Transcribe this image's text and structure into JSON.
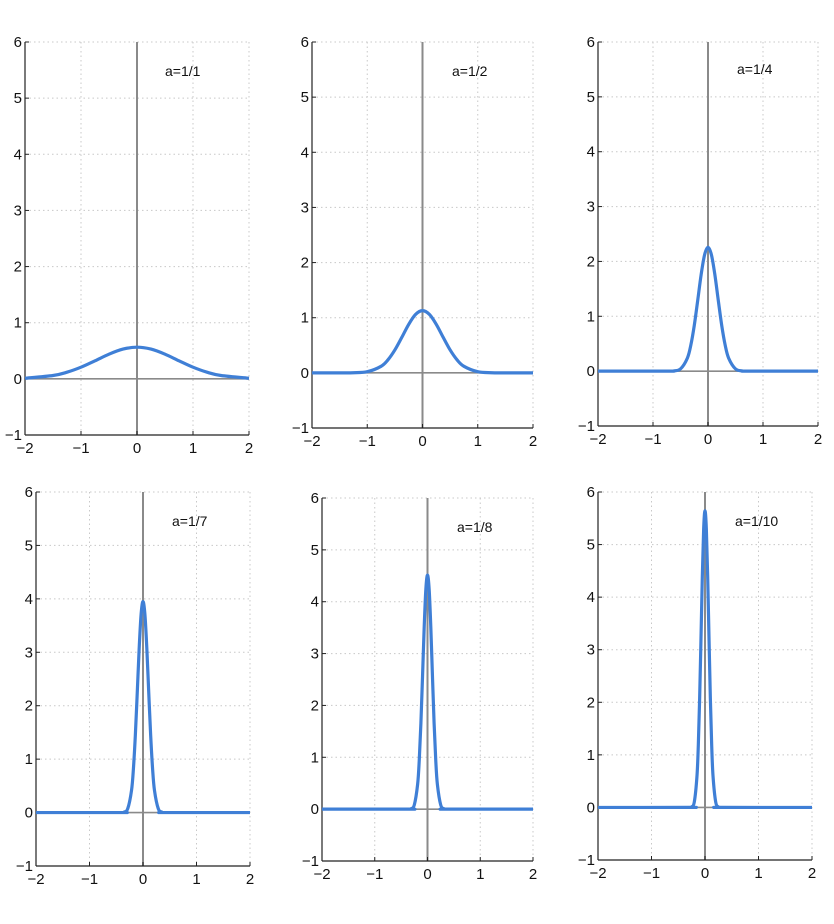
{
  "colors": {
    "curve": "#3f7fd6",
    "zero_lines": "#8a8a8a",
    "grid": "#c8c8c8",
    "axes": "#222222"
  },
  "chart_data": [
    {
      "type": "line",
      "annotation": "a=1/1",
      "xlim": [
        -2,
        2
      ],
      "ylim": [
        -1,
        6
      ],
      "grid": true,
      "xticks": [
        "−2",
        "−1",
        "0",
        "1",
        "2"
      ],
      "yticks": [
        "−1",
        "0",
        "1",
        "2",
        "3",
        "4",
        "5",
        "6"
      ],
      "x": [
        -2,
        -1.5,
        -1.25,
        -1,
        -0.75,
        -0.5,
        -0.25,
        0,
        0.25,
        0.5,
        0.75,
        1,
        1.25,
        1.5,
        2
      ],
      "y": [
        0.0103,
        0.0595,
        0.1183,
        0.2076,
        0.3215,
        0.4394,
        0.53,
        0.5642,
        0.53,
        0.4394,
        0.3215,
        0.2076,
        0.1183,
        0.0595,
        0.0103
      ]
    },
    {
      "type": "line",
      "annotation": "a=1/2",
      "xlim": [
        -2,
        2
      ],
      "ylim": [
        -1,
        6
      ],
      "grid": true,
      "xticks": [
        "−2",
        "−1",
        "0",
        "1",
        "2"
      ],
      "yticks": [
        "−1",
        "0",
        "1",
        "2",
        "3",
        "4",
        "5",
        "6"
      ],
      "x": [
        -2,
        -1.5,
        -1.25,
        -1,
        -0.75,
        -0.625,
        -0.5,
        -0.375,
        -0.25,
        -0.125,
        0,
        0.125,
        0.25,
        0.375,
        0.5,
        0.625,
        0.75,
        1,
        1.25,
        1.5,
        2
      ],
      "y": [
        0,
        0.0001,
        0.0021,
        0.0207,
        0.1189,
        0.2365,
        0.4151,
        0.643,
        0.8788,
        1.06,
        1.1284,
        1.06,
        0.8788,
        0.643,
        0.4151,
        0.2365,
        0.1189,
        0.0207,
        0.0021,
        0.0001,
        0
      ]
    },
    {
      "type": "line",
      "annotation": "a=1/4",
      "xlim": [
        -2,
        2
      ],
      "ylim": [
        -1,
        6
      ],
      "grid": true,
      "xticks": [
        "−2",
        "−1",
        "0",
        "1",
        "2"
      ],
      "yticks": [
        "−1",
        "0",
        "1",
        "2",
        "3",
        "4",
        "5",
        "6"
      ],
      "x": [
        -2,
        -0.75,
        -0.625,
        -0.5,
        -0.375,
        -0.3125,
        -0.25,
        -0.1875,
        -0.125,
        -0.0625,
        0,
        0.0625,
        0.125,
        0.1875,
        0.25,
        0.3125,
        0.375,
        0.5,
        0.625,
        0.75,
        2
      ],
      "y": [
        0,
        0.0003,
        0.0043,
        0.0413,
        0.2379,
        0.473,
        0.8303,
        1.2859,
        1.7576,
        2.12,
        2.2568,
        2.12,
        1.7576,
        1.2859,
        0.8303,
        0.473,
        0.2379,
        0.0413,
        0.0043,
        0.0003,
        0
      ]
    },
    {
      "type": "line",
      "annotation": "a=1/7",
      "xlim": [
        -2,
        2
      ],
      "ylim": [
        -1,
        6
      ],
      "grid": true,
      "xticks": [
        "−2",
        "−1",
        "0",
        "1",
        "2"
      ],
      "yticks": [
        "−1",
        "0",
        "1",
        "2",
        "3",
        "4",
        "5",
        "6"
      ],
      "x": [
        -2,
        -0.4286,
        -0.3571,
        -0.2857,
        -0.2143,
        -0.1786,
        -0.1429,
        -0.1071,
        -0.0714,
        -0.0357,
        0,
        0.0357,
        0.0714,
        0.1071,
        0.1429,
        0.1786,
        0.2143,
        0.2857,
        0.3571,
        0.4286,
        2
      ],
      "y": [
        0,
        0.0004,
        0.0075,
        0.0723,
        0.4163,
        0.8278,
        1.453,
        2.2503,
        3.0757,
        3.71,
        3.9493,
        3.71,
        3.0757,
        2.2503,
        1.453,
        0.8278,
        0.4163,
        0.0723,
        0.0075,
        0.0004,
        0
      ]
    },
    {
      "type": "line",
      "annotation": "a=1/8",
      "xlim": [
        -2,
        2
      ],
      "ylim": [
        -1,
        6
      ],
      "grid": true,
      "xticks": [
        "−2",
        "−1",
        "0",
        "1",
        "2"
      ],
      "yticks": [
        "−1",
        "0",
        "1",
        "2",
        "3",
        "4",
        "5",
        "6"
      ],
      "x": [
        -2,
        -0.375,
        -0.3125,
        -0.25,
        -0.1875,
        -0.15625,
        -0.125,
        -0.09375,
        -0.0625,
        -0.03125,
        0,
        0.03125,
        0.0625,
        0.09375,
        0.125,
        0.15625,
        0.1875,
        0.25,
        0.3125,
        0.375,
        2
      ],
      "y": [
        0,
        0.0005,
        0.0086,
        0.0826,
        0.4757,
        0.946,
        1.6605,
        2.5718,
        3.5151,
        4.24,
        4.5135,
        4.24,
        3.5151,
        2.5718,
        1.6605,
        0.946,
        0.4757,
        0.0826,
        0.0086,
        0.0005,
        0
      ]
    },
    {
      "type": "line",
      "annotation": "a=1/10",
      "xlim": [
        -2,
        2
      ],
      "ylim": [
        -1,
        6
      ],
      "grid": true,
      "xticks": [
        "−2",
        "−1",
        "0",
        "1",
        "2"
      ],
      "yticks": [
        "−1",
        "0",
        "1",
        "2",
        "3",
        "4",
        "5",
        "6"
      ],
      "x": [
        -2,
        -0.3,
        -0.25,
        -0.2,
        -0.15,
        -0.125,
        -0.1,
        -0.075,
        -0.05,
        -0.025,
        0,
        0.025,
        0.05,
        0.075,
        0.1,
        0.125,
        0.15,
        0.2,
        0.25,
        0.3,
        2
      ],
      "y": [
        0,
        0.0006,
        0.0107,
        0.1032,
        0.5947,
        1.1825,
        2.0757,
        3.2148,
        4.3939,
        5.3,
        5.6419,
        5.3,
        4.3939,
        3.2148,
        2.0757,
        1.1825,
        0.5947,
        0.1032,
        0.0107,
        0.0006,
        0
      ]
    }
  ]
}
